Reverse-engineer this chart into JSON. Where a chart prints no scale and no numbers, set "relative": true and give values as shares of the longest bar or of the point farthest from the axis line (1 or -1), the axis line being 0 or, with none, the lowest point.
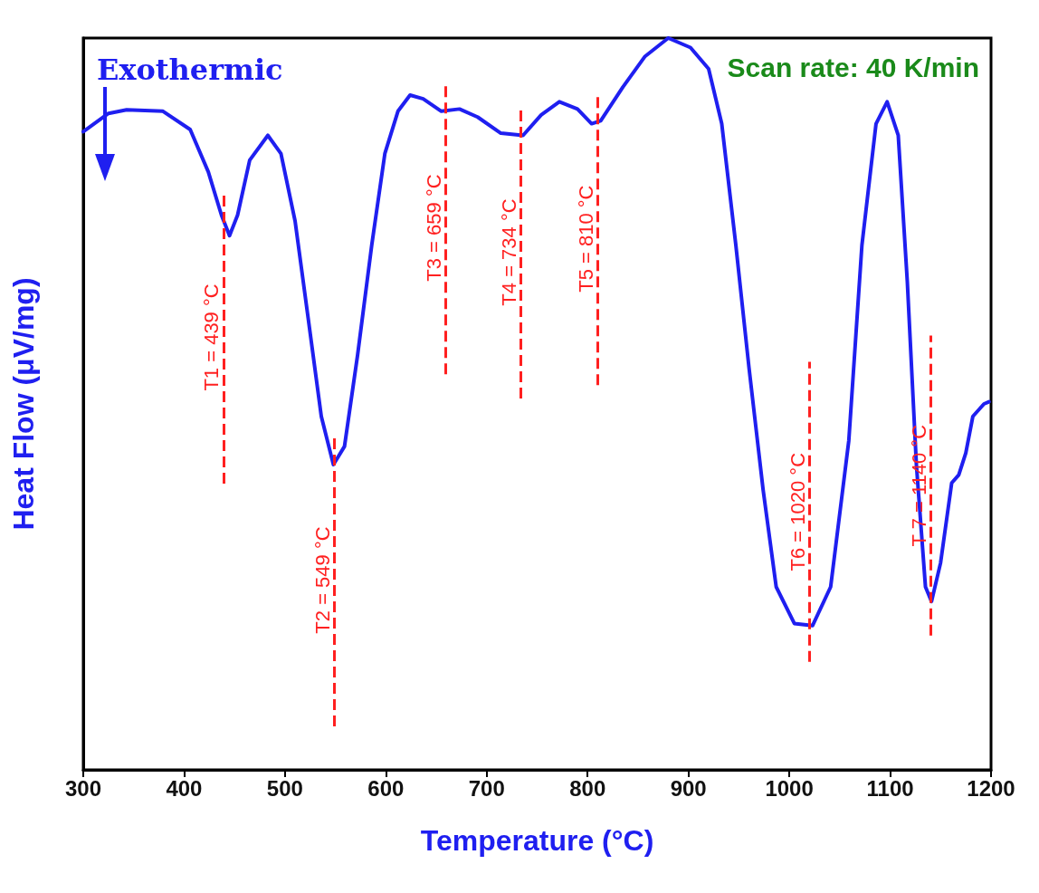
{
  "chart_data": {
    "type": "line",
    "relative": true,
    "xlabel": "Temperature (°C)",
    "ylabel": "Heat Flow (μV/mg)",
    "xlim": [
      300,
      1200
    ],
    "xticks": [
      300,
      400,
      500,
      600,
      700,
      800,
      900,
      1000,
      1100,
      1200
    ],
    "grid": false,
    "marker": "none",
    "line_style": "solid",
    "annotations": [
      "Exothermic",
      "Scan rate: 40 K/min"
    ],
    "series": [
      {
        "color": "#1f1ff0",
        "x": [
          300,
          325,
          343,
          379,
          406,
          424,
          437,
          445,
          453,
          465,
          483,
          496,
          510,
          523,
          536,
          548,
          559,
          572,
          586,
          599,
          612,
          624,
          637,
          655,
          673,
          691,
          714,
          736,
          754,
          772,
          790,
          804,
          813,
          835,
          857,
          880,
          902,
          920,
          933,
          947,
          960,
          974,
          987,
          1005,
          1023,
          1041,
          1059,
          1072,
          1086,
          1097,
          1108,
          1117,
          1126,
          1135,
          1141,
          1150,
          1161,
          1168,
          1175,
          1182,
          1193,
          1198
        ],
        "values": [
          0.872,
          0.897,
          0.902,
          0.9,
          0.875,
          0.817,
          0.758,
          0.73,
          0.758,
          0.833,
          0.867,
          0.842,
          0.75,
          0.617,
          0.483,
          0.417,
          0.442,
          0.567,
          0.717,
          0.842,
          0.9,
          0.922,
          0.917,
          0.9,
          0.903,
          0.892,
          0.87,
          0.867,
          0.895,
          0.913,
          0.903,
          0.883,
          0.887,
          0.933,
          0.975,
          1.0,
          0.987,
          0.958,
          0.883,
          0.717,
          0.55,
          0.383,
          0.25,
          0.2,
          0.197,
          0.25,
          0.45,
          0.717,
          0.883,
          0.913,
          0.867,
          0.667,
          0.417,
          0.25,
          0.23,
          0.283,
          0.392,
          0.403,
          0.433,
          0.483,
          0.5,
          0.503
        ]
      }
    ],
    "ref_lines": [
      {
        "axis": "x",
        "value": 439,
        "label": "T1 = 439 °C",
        "color": "#ff2020",
        "line_style": "dashed"
      },
      {
        "axis": "x",
        "value": 549,
        "label": "T2 = 549 °C",
        "color": "#ff2020",
        "line_style": "dashed"
      },
      {
        "axis": "x",
        "value": 659,
        "label": "T3 = 659 °C",
        "color": "#ff2020",
        "line_style": "dashed"
      },
      {
        "axis": "x",
        "value": 734,
        "label": "T4 = 734 °C",
        "color": "#ff2020",
        "line_style": "dashed"
      },
      {
        "axis": "x",
        "value": 810,
        "label": "T5 = 810 °C",
        "color": "#ff2020",
        "line_style": "dashed"
      },
      {
        "axis": "x",
        "value": 1020,
        "label": "T6 = 1020 °C",
        "color": "#ff2020",
        "line_style": "dashed"
      },
      {
        "axis": "x",
        "value": 1140,
        "label": "T 7 = 1140 °C",
        "color": "#ff2020",
        "line_style": "dashed"
      }
    ]
  }
}
